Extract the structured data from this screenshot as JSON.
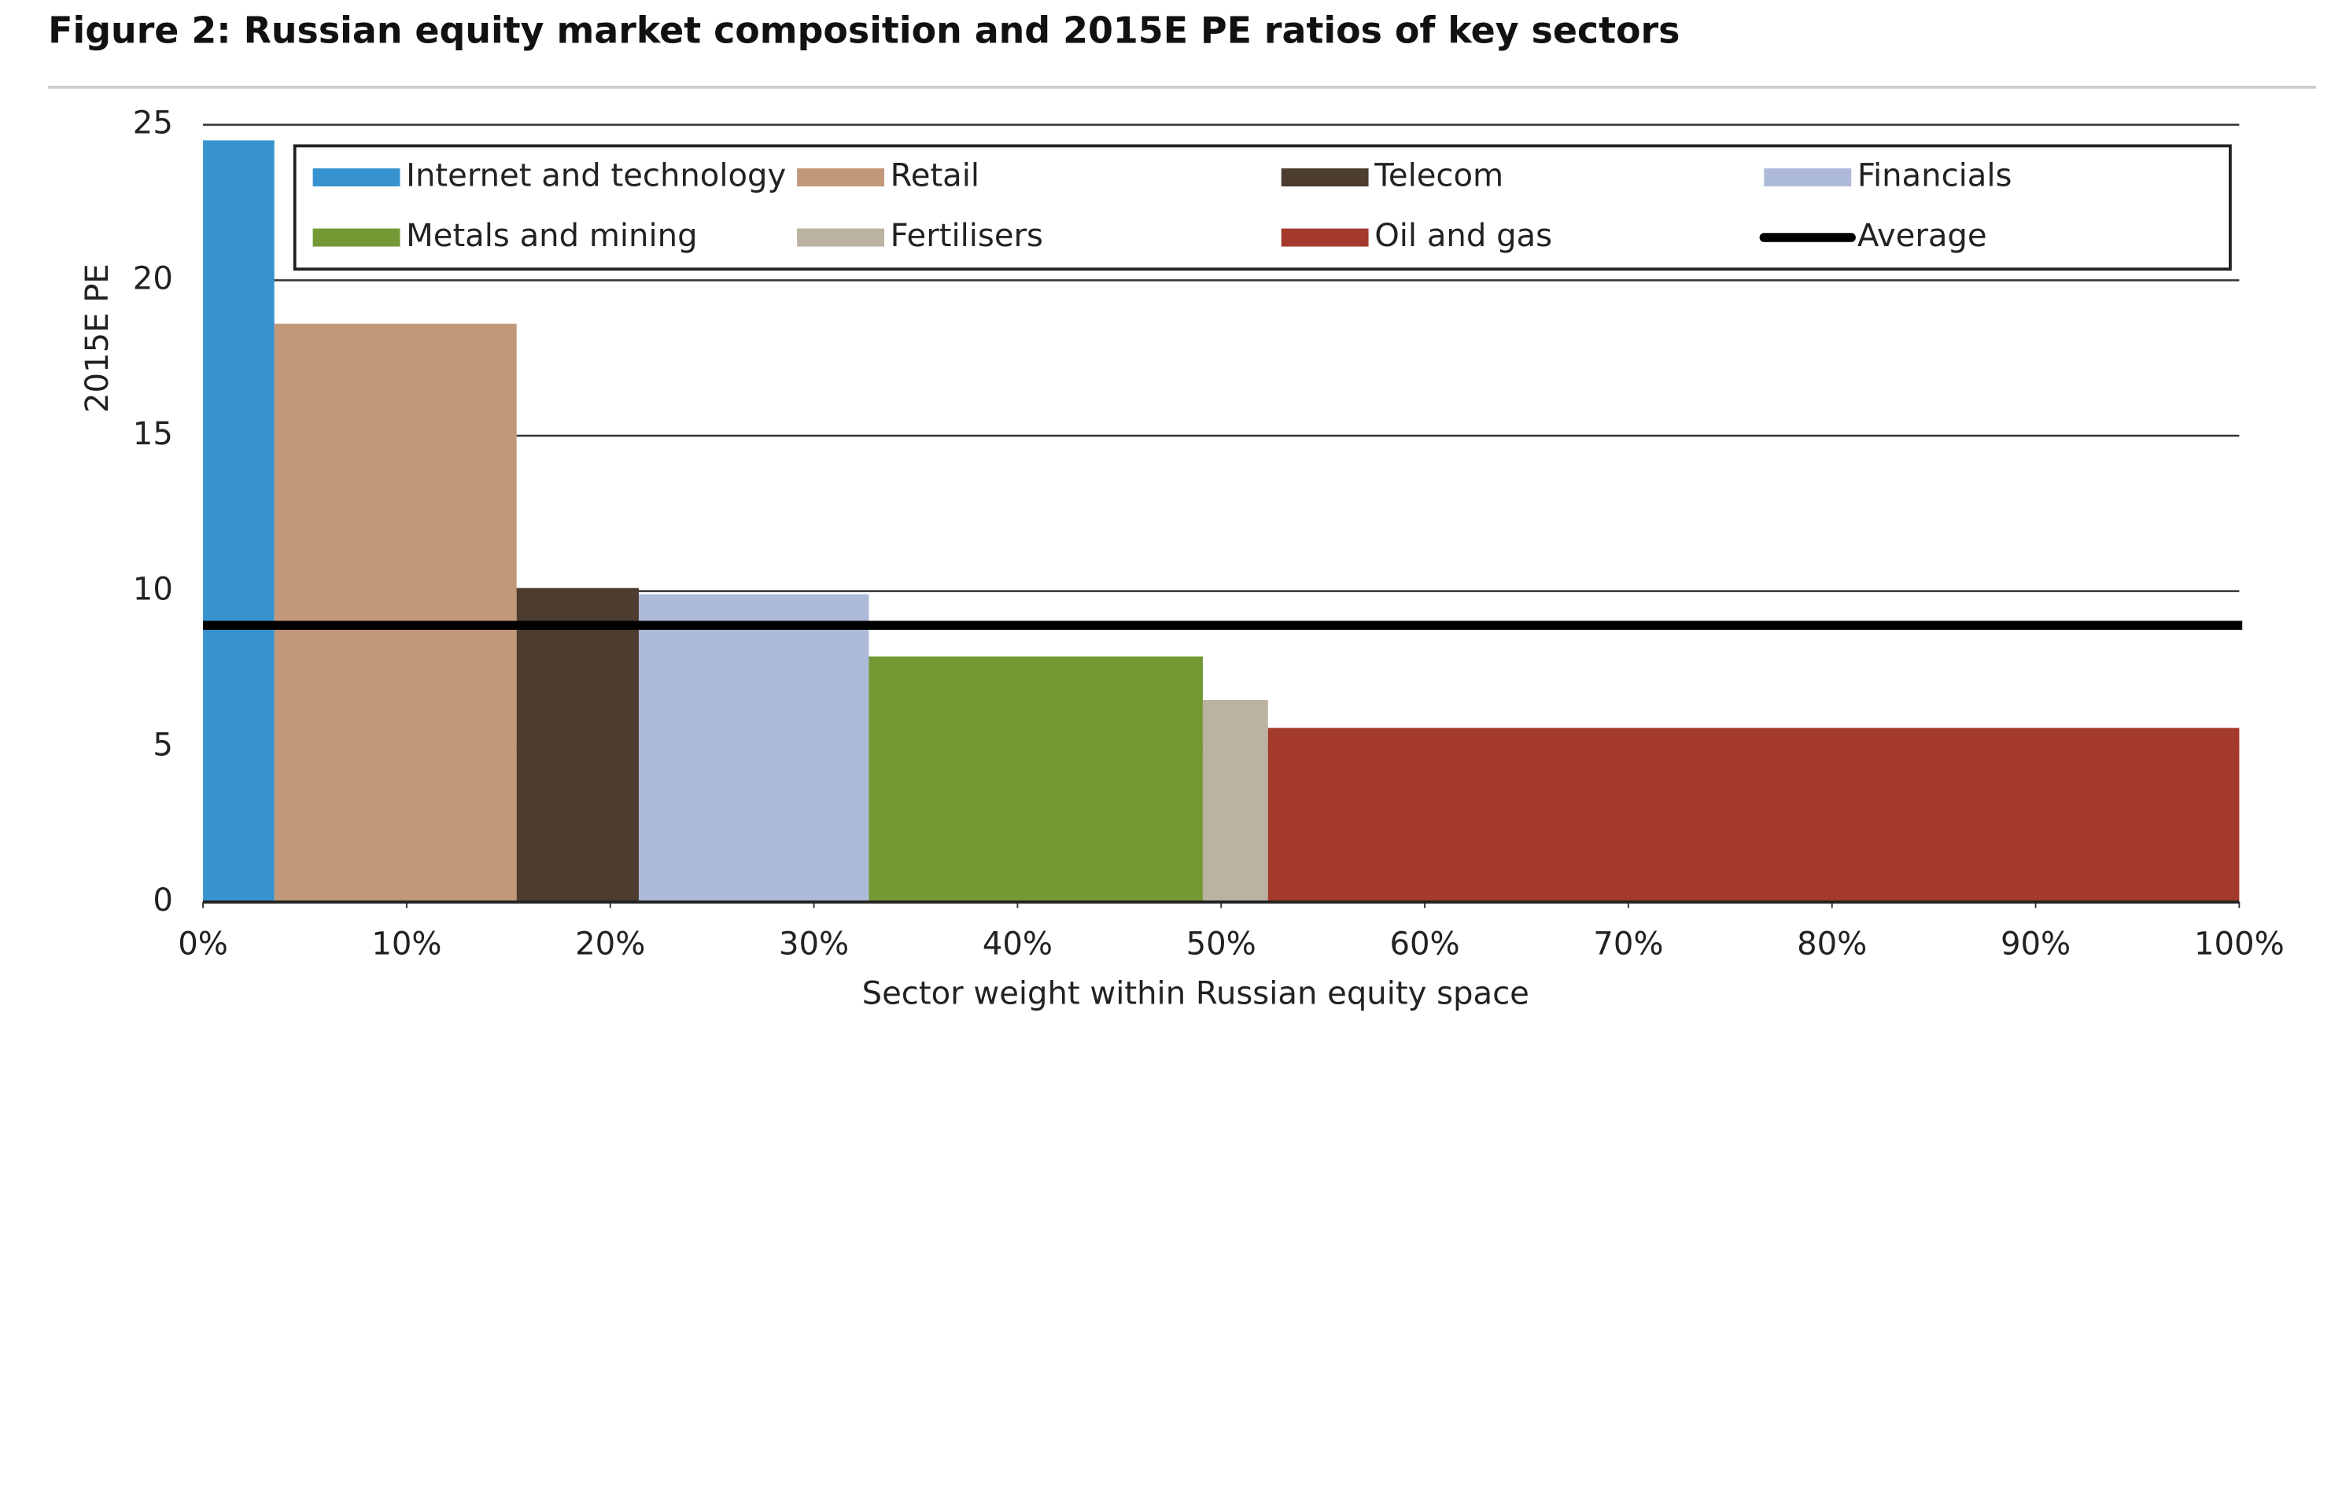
{
  "chart_data": {
    "type": "variable-width-bar",
    "title": "Figure 2: Russian equity market composition and 2015E PE ratios of key sectors",
    "x_label": "Sector weight within Russian equity space",
    "y_label": "2015E PE",
    "categories": [
      "Internet and technology",
      "Retail",
      "Telecom",
      "Financials",
      "Metals and mining",
      "Fertilisers",
      "Oil and gas"
    ],
    "colors": [
      "#3793cf",
      "#c1987a",
      "#4d3d30",
      "#adbad8",
      "#739834",
      "#bbb2a2",
      "#a33a2b"
    ],
    "bins": [
      0,
      3.5,
      15.4,
      21.4,
      32.7,
      49.1,
      52.3,
      100
    ],
    "values": [
      24.5,
      18.6,
      10.1,
      9.9,
      7.9,
      6.5,
      5.6
    ],
    "average": {
      "name": "Average",
      "value": 8.9,
      "color": "#000000"
    },
    "xlim": [
      0,
      100
    ],
    "xticks": [
      {
        "value": 0,
        "label": "0%"
      },
      {
        "value": 10,
        "label": "10%"
      },
      {
        "value": 20,
        "label": "20%"
      },
      {
        "value": 30,
        "label": "30%"
      },
      {
        "value": 40,
        "label": "40%"
      },
      {
        "value": 50,
        "label": "50%"
      },
      {
        "value": 60,
        "label": "60%"
      },
      {
        "value": 70,
        "label": "70%"
      },
      {
        "value": 80,
        "label": "80%"
      },
      {
        "value": 90,
        "label": "90%"
      },
      {
        "value": 100,
        "label": "100%"
      }
    ],
    "ylim": [
      0,
      25
    ],
    "yticks": [
      0,
      5,
      10,
      15,
      20,
      25
    ],
    "grid": true
  }
}
